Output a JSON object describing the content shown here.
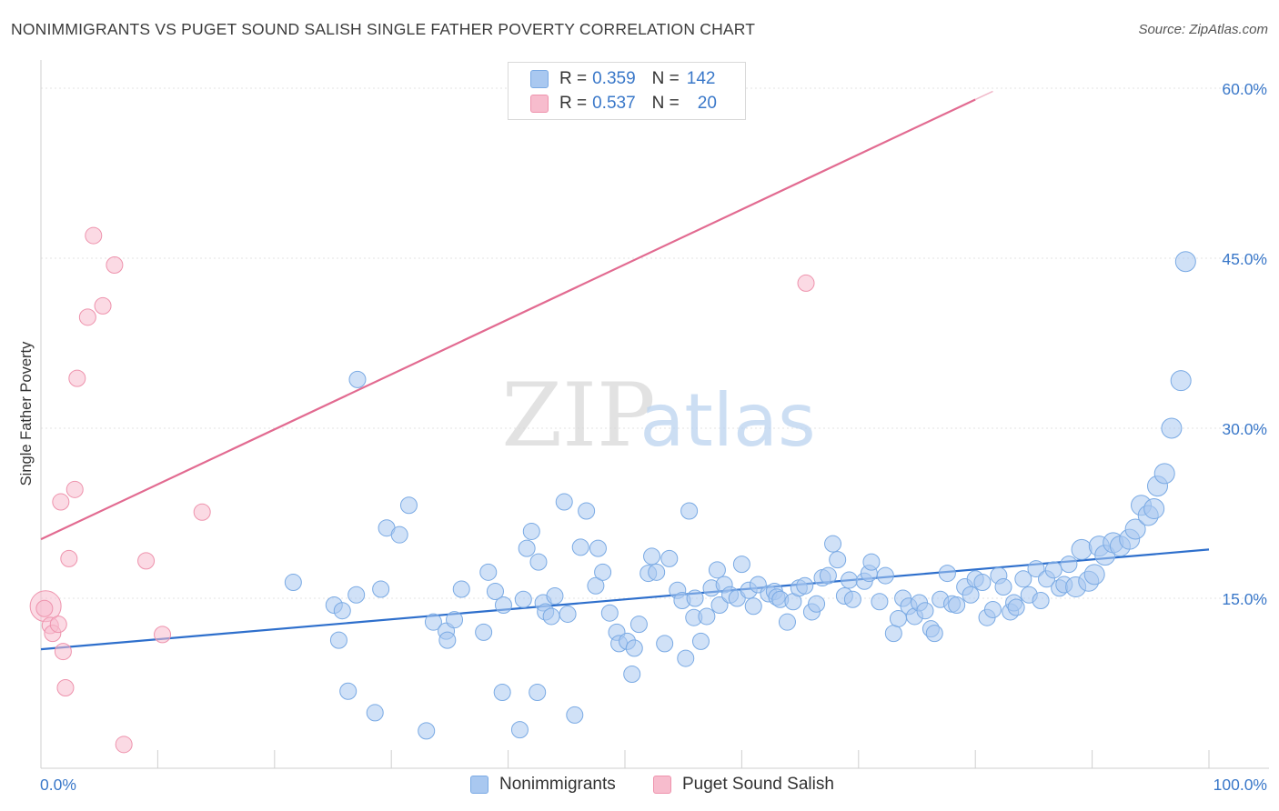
{
  "title": "NONIMMIGRANTS VS PUGET SOUND SALISH SINGLE FATHER POVERTY CORRELATION CHART",
  "source": "Source: ZipAtlas.com",
  "watermark": {
    "zip": "ZIP",
    "atlas": "atlas"
  },
  "legend": {
    "r_label": "R =",
    "n_label": "N =",
    "items": [
      {
        "name": "Nonimmigrants",
        "r": "0.359",
        "n": "142",
        "color": "#a9c8f0",
        "edge": "#7aaae4"
      },
      {
        "name": "Puget Sound Salish",
        "r": "0.537",
        "n": "20",
        "color": "#f7bccd",
        "edge": "#ee93ad"
      }
    ]
  },
  "chart_data": {
    "type": "scatter",
    "ylabel": "Single Father Poverty",
    "xlim": [
      0,
      100
    ],
    "ylim": [
      0,
      60
    ],
    "x_tick_labels": [
      "0.0%",
      "100.0%"
    ],
    "y_ticks": [
      15,
      30,
      45,
      60
    ],
    "y_tick_labels": [
      "15.0%",
      "30.0%",
      "45.0%",
      "60.0%"
    ],
    "grid": true,
    "series": [
      {
        "name": "Nonimmigrants",
        "color": "#a9c8f0",
        "edge": "#7aaae4",
        "line_color": "#2e6fcc",
        "trend": [
          [
            0,
            10.5
          ],
          [
            100,
            19.3
          ]
        ],
        "points": [
          [
            21.6,
            16.4
          ],
          [
            25.1,
            14.4
          ],
          [
            25.8,
            13.9
          ],
          [
            25.5,
            11.3
          ],
          [
            27.0,
            15.3
          ],
          [
            27.1,
            34.3
          ],
          [
            26.3,
            6.8
          ],
          [
            28.6,
            4.9
          ],
          [
            29.1,
            15.8
          ],
          [
            29.6,
            21.2
          ],
          [
            30.7,
            20.6
          ],
          [
            31.5,
            23.2
          ],
          [
            33.0,
            3.3
          ],
          [
            33.6,
            12.9
          ],
          [
            34.7,
            12.1
          ],
          [
            34.8,
            11.3
          ],
          [
            35.4,
            13.1
          ],
          [
            36.0,
            15.8
          ],
          [
            37.9,
            12.0
          ],
          [
            38.3,
            17.3
          ],
          [
            38.9,
            15.6
          ],
          [
            39.5,
            6.7
          ],
          [
            39.6,
            14.4
          ],
          [
            41.0,
            3.4
          ],
          [
            41.3,
            14.9
          ],
          [
            41.6,
            19.4
          ],
          [
            42.0,
            20.9
          ],
          [
            42.5,
            6.7
          ],
          [
            42.6,
            18.2
          ],
          [
            43.0,
            14.6
          ],
          [
            43.2,
            13.8
          ],
          [
            43.7,
            13.4
          ],
          [
            44.0,
            15.2
          ],
          [
            44.8,
            23.5
          ],
          [
            45.1,
            13.6
          ],
          [
            45.7,
            4.7
          ],
          [
            46.2,
            19.5
          ],
          [
            46.7,
            22.7
          ],
          [
            47.5,
            16.1
          ],
          [
            47.7,
            19.4
          ],
          [
            48.1,
            17.3
          ],
          [
            48.7,
            13.7
          ],
          [
            49.3,
            12.0
          ],
          [
            49.5,
            11.0
          ],
          [
            50.2,
            11.2
          ],
          [
            50.6,
            8.3
          ],
          [
            50.8,
            10.6
          ],
          [
            51.2,
            12.7
          ],
          [
            52.0,
            17.2
          ],
          [
            52.3,
            18.7
          ],
          [
            52.7,
            17.3
          ],
          [
            53.4,
            11.0
          ],
          [
            53.8,
            18.5
          ],
          [
            54.5,
            15.7
          ],
          [
            54.9,
            14.8
          ],
          [
            55.2,
            9.7
          ],
          [
            55.5,
            22.7
          ],
          [
            55.9,
            13.3
          ],
          [
            56.0,
            15.0
          ],
          [
            56.5,
            11.2
          ],
          [
            57.0,
            13.4
          ],
          [
            57.4,
            15.9
          ],
          [
            57.9,
            17.5
          ],
          [
            58.1,
            14.4
          ],
          [
            58.5,
            16.2
          ],
          [
            59.0,
            15.3
          ],
          [
            59.6,
            15.0
          ],
          [
            60.0,
            18.0
          ],
          [
            60.6,
            15.7
          ],
          [
            61.0,
            14.3
          ],
          [
            61.4,
            16.2
          ],
          [
            62.3,
            15.4
          ],
          [
            62.8,
            15.6
          ],
          [
            63.0,
            15.1
          ],
          [
            63.3,
            14.9
          ],
          [
            63.9,
            12.9
          ],
          [
            64.4,
            14.7
          ],
          [
            64.9,
            15.9
          ],
          [
            65.4,
            16.1
          ],
          [
            66.0,
            13.8
          ],
          [
            66.4,
            14.5
          ],
          [
            66.9,
            16.8
          ],
          [
            67.4,
            17.0
          ],
          [
            67.8,
            19.8
          ],
          [
            68.2,
            18.4
          ],
          [
            68.8,
            15.2
          ],
          [
            69.2,
            16.6
          ],
          [
            69.5,
            14.9
          ],
          [
            70.5,
            16.5
          ],
          [
            70.9,
            17.2
          ],
          [
            71.1,
            18.2
          ],
          [
            71.8,
            14.7
          ],
          [
            72.3,
            17.0
          ],
          [
            73.0,
            11.9
          ],
          [
            73.4,
            13.2
          ],
          [
            73.8,
            15.0
          ],
          [
            74.3,
            14.3
          ],
          [
            74.8,
            13.4
          ],
          [
            75.2,
            14.6
          ],
          [
            75.7,
            13.9
          ],
          [
            76.2,
            12.3
          ],
          [
            76.5,
            11.9
          ],
          [
            77.0,
            14.9
          ],
          [
            77.6,
            17.2
          ],
          [
            78.0,
            14.5
          ],
          [
            78.4,
            14.4
          ],
          [
            79.1,
            16.0
          ],
          [
            79.6,
            15.3
          ],
          [
            80.0,
            16.7
          ],
          [
            80.6,
            16.4
          ],
          [
            81.0,
            13.3
          ],
          [
            81.5,
            14.0
          ],
          [
            82.0,
            17.0
          ],
          [
            82.4,
            16.0
          ],
          [
            83.0,
            13.8
          ],
          [
            83.3,
            14.6
          ],
          [
            84.1,
            16.7
          ],
          [
            84.6,
            15.3
          ],
          [
            85.2,
            17.6
          ],
          [
            85.6,
            14.8
          ],
          [
            86.1,
            16.7
          ],
          [
            86.7,
            17.5
          ],
          [
            87.2,
            15.9
          ],
          [
            87.6,
            16.2
          ],
          [
            88.0,
            18.0
          ],
          [
            88.6,
            16.0
          ],
          [
            89.1,
            19.3
          ],
          [
            89.7,
            16.5
          ],
          [
            90.2,
            17.1
          ],
          [
            90.6,
            19.6
          ],
          [
            91.1,
            18.8
          ],
          [
            91.8,
            19.9
          ],
          [
            92.4,
            19.6
          ],
          [
            93.2,
            20.2
          ],
          [
            93.7,
            21.1
          ],
          [
            94.2,
            23.2
          ],
          [
            94.8,
            22.3
          ],
          [
            95.3,
            22.9
          ],
          [
            95.6,
            24.9
          ],
          [
            96.2,
            26.0
          ],
          [
            96.8,
            30.0
          ],
          [
            97.6,
            34.2
          ],
          [
            98.0,
            44.7
          ],
          [
            83.5,
            14.2
          ]
        ]
      },
      {
        "name": "Puget Sound Salish",
        "color": "#f7bccd",
        "edge": "#ee93ad",
        "line_color": "#e26b91",
        "trend": [
          [
            0,
            20.2
          ],
          [
            80,
            59.0
          ]
        ],
        "points": [
          [
            0.4,
            14.3
          ],
          [
            0.8,
            12.6
          ],
          [
            1.0,
            11.9
          ],
          [
            1.5,
            12.7
          ],
          [
            1.7,
            23.5
          ],
          [
            1.9,
            10.3
          ],
          [
            2.1,
            7.1
          ],
          [
            2.4,
            18.5
          ],
          [
            2.9,
            24.6
          ],
          [
            3.1,
            34.4
          ],
          [
            4.0,
            39.8
          ],
          [
            4.5,
            47.0
          ],
          [
            5.3,
            40.8
          ],
          [
            6.3,
            44.4
          ],
          [
            7.1,
            2.1
          ],
          [
            9.0,
            18.3
          ],
          [
            10.4,
            11.8
          ],
          [
            13.8,
            22.6
          ],
          [
            65.5,
            42.8
          ],
          [
            0.3,
            14.1
          ]
        ]
      }
    ]
  }
}
